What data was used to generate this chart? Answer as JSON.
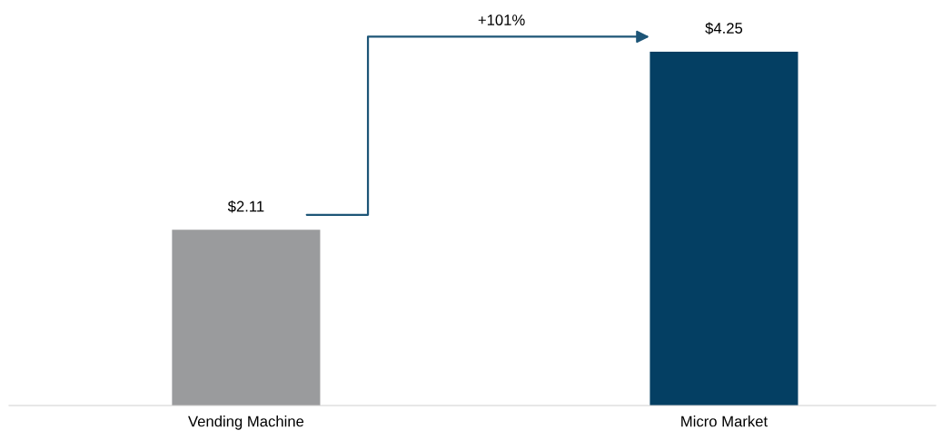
{
  "chart_data": {
    "type": "bar",
    "categories": [
      "Vending Machine",
      "Micro Market"
    ],
    "values": [
      2.11,
      4.25
    ],
    "colors": [
      "#9a9b9d",
      "#043f63"
    ],
    "value_labels": [
      "$2.11",
      "$4.25"
    ],
    "tick_labels": "x",
    "grid": false,
    "legend": false,
    "annotations": [
      "+101%"
    ]
  }
}
